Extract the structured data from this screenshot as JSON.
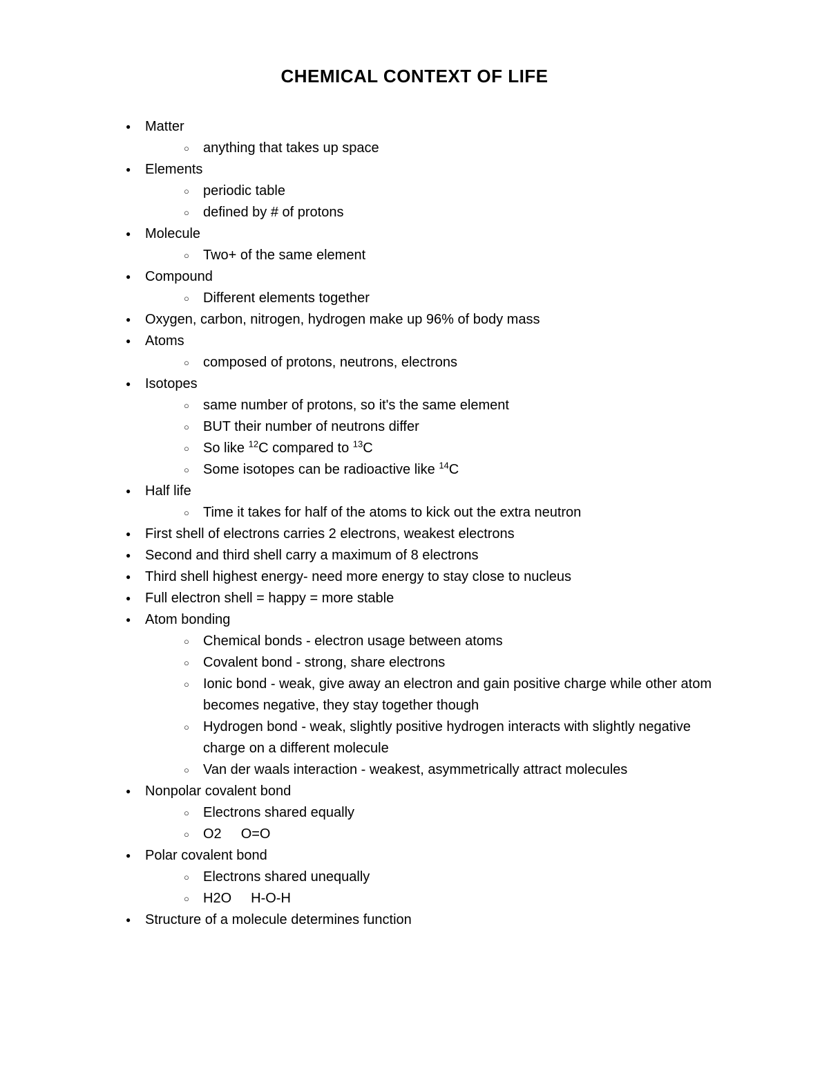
{
  "title": "CHEMICAL CONTEXT OF LIFE",
  "style": {
    "background_color": "#ffffff",
    "text_color": "#000000",
    "title_fontsize": 26,
    "title_fontweight": "bold",
    "body_fontsize": 20,
    "font_family": "Arial, Helvetica, sans-serif",
    "line_height": 1.55,
    "top_bullet": "●",
    "sub_bullet": "○"
  },
  "items": [
    {
      "text": "Matter",
      "sub": [
        {
          "text": "anything that takes up space"
        }
      ]
    },
    {
      "text": "Elements",
      "sub": [
        {
          "text": "periodic table"
        },
        {
          "text": "defined by # of protons"
        }
      ]
    },
    {
      "text": "Molecule",
      "sub": [
        {
          "text": "Two+ of the same element"
        }
      ]
    },
    {
      "text": "Compound",
      "sub": [
        {
          "text": "Different elements together"
        }
      ]
    },
    {
      "text": "Oxygen, carbon, nitrogen, hydrogen make up 96% of body mass"
    },
    {
      "text": "Atoms",
      "sub": [
        {
          "text": "composed of protons, neutrons, electrons"
        }
      ]
    },
    {
      "text": "Isotopes",
      "sub": [
        {
          "text": "same number of protons, so it's the same element"
        },
        {
          "text": "BUT their number of neutrons differ"
        },
        {
          "html": "So like <sup>12</sup>C compared to <sup>13</sup>C"
        },
        {
          "html": "Some isotopes can be radioactive like <sup>14</sup>C"
        }
      ]
    },
    {
      "text": "Half life",
      "sub": [
        {
          "text": "Time it takes for half of the atoms to kick out the extra neutron"
        }
      ]
    },
    {
      "text": "First shell of electrons carries 2 electrons, weakest electrons"
    },
    {
      "text": "Second and third shell carry a maximum of 8 electrons"
    },
    {
      "text": "Third shell highest energy- need more energy to stay close to nucleus"
    },
    {
      "text": "Full electron shell = happy = more stable"
    },
    {
      "text": "Atom bonding",
      "sub": [
        {
          "text": "Chemical bonds - electron usage between atoms"
        },
        {
          "text": "Covalent bond - strong, share electrons"
        },
        {
          "text": "Ionic bond - weak, give away an electron and gain positive charge while other atom becomes negative, they stay together though"
        },
        {
          "text": "Hydrogen bond - weak, slightly positive hydrogen interacts with slightly negative charge on a different molecule"
        },
        {
          "text": "Van der waals interaction - weakest, asymmetrically attract molecules"
        }
      ]
    },
    {
      "text": "Nonpolar covalent bond",
      "sub": [
        {
          "text": "Electrons shared equally"
        },
        {
          "html": "O2<span class=\"spacer\"></span>O=O"
        }
      ]
    },
    {
      "text": "Polar covalent bond",
      "sub": [
        {
          "text": "Electrons shared unequally"
        },
        {
          "html": "H2O<span class=\"spacer\"></span>H-O-H"
        }
      ]
    },
    {
      "text": "Structure of a molecule determines function"
    }
  ]
}
